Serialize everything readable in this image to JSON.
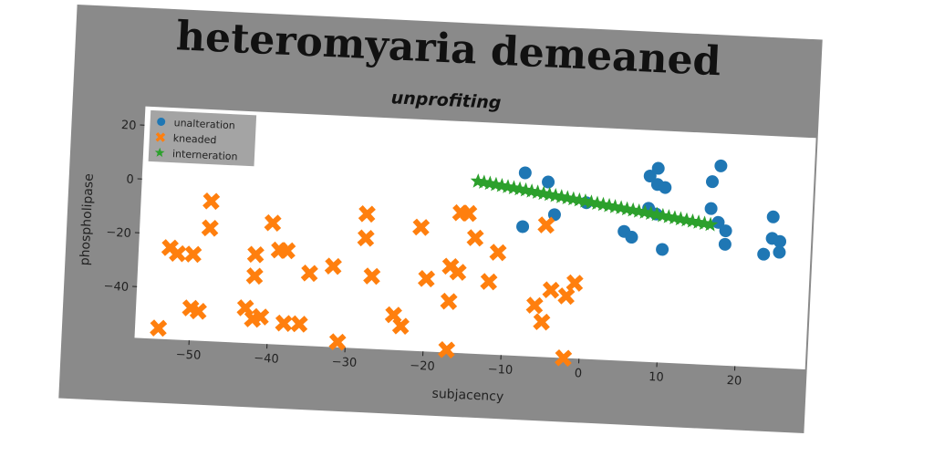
{
  "chart_data": {
    "type": "scatter",
    "title": "heteromyaria demeaned",
    "subtitle": "unprofiting",
    "xlabel": "subjacency",
    "ylabel": "phospholipase",
    "xlim": [
      -57,
      29
    ],
    "ylim": [
      -59,
      27
    ],
    "xticks": [
      -50,
      -40,
      -30,
      -20,
      -10,
      0,
      10,
      20
    ],
    "yticks": [
      -40,
      -20,
      0,
      20
    ],
    "xtick_labels": [
      "−50",
      "−40",
      "−30",
      "−20",
      "−10",
      "0",
      "10",
      "20"
    ],
    "ytick_labels": [
      "−40",
      "−20",
      "0",
      "20"
    ],
    "grid": false,
    "legend_position": "top-left",
    "series": [
      {
        "name": "unalteration",
        "marker": "circle",
        "color": "#1f77b4",
        "points": [
          [
            -8,
            9
          ],
          [
            -5,
            6
          ],
          [
            -8,
            -11
          ],
          [
            -4,
            -6
          ],
          [
            0,
            -1
          ],
          [
            5,
            -11
          ],
          [
            6,
            -13
          ],
          [
            8,
            10
          ],
          [
            9,
            13
          ],
          [
            9,
            7
          ],
          [
            10,
            6
          ],
          [
            8,
            -2
          ],
          [
            9,
            -4
          ],
          [
            10,
            -17
          ],
          [
            16,
            9
          ],
          [
            17,
            15
          ],
          [
            16,
            -1
          ],
          [
            17,
            -6
          ],
          [
            18,
            -9
          ],
          [
            18,
            -14
          ],
          [
            23,
            -17
          ],
          [
            24,
            -3
          ],
          [
            24,
            -11
          ],
          [
            25,
            -12
          ],
          [
            25,
            -16
          ]
        ]
      },
      {
        "name": "kneaded",
        "marker": "x",
        "color": "#ff7f0e",
        "points": [
          [
            -48,
            -7
          ],
          [
            -48,
            -17
          ],
          [
            -53,
            -25
          ],
          [
            -52,
            -27
          ],
          [
            -50,
            -27
          ],
          [
            -50,
            -47
          ],
          [
            -49,
            -48
          ],
          [
            -54,
            -55
          ],
          [
            -42,
            -26
          ],
          [
            -42,
            -34
          ],
          [
            -43,
            -46
          ],
          [
            -42,
            -50
          ],
          [
            -41,
            -49
          ],
          [
            -40,
            -14
          ],
          [
            -39,
            -24
          ],
          [
            -38,
            -24
          ],
          [
            -38,
            -51
          ],
          [
            -36,
            -51
          ],
          [
            -35,
            -32
          ],
          [
            -32,
            -29
          ],
          [
            -31,
            -57
          ],
          [
            -28,
            -9
          ],
          [
            -28,
            -18
          ],
          [
            -27,
            -32
          ],
          [
            -24,
            -46
          ],
          [
            -23,
            -50
          ],
          [
            -21,
            -13
          ],
          [
            -20,
            -32
          ],
          [
            -17,
            -27
          ],
          [
            -16,
            -29
          ],
          [
            -17,
            -40
          ],
          [
            -16,
            -7
          ],
          [
            -15,
            -7
          ],
          [
            -14,
            -16
          ],
          [
            -12,
            -32
          ],
          [
            -11,
            -21
          ],
          [
            -17,
            -58
          ],
          [
            -6,
            -40
          ],
          [
            -5,
            -46
          ],
          [
            -5,
            -10
          ],
          [
            -4,
            -34
          ],
          [
            -2,
            -36
          ],
          [
            -1,
            -31
          ],
          [
            -2,
            -59
          ]
        ]
      },
      {
        "name": "interneration",
        "marker": "star",
        "color": "#2ca02c",
        "line_from": [
          -14,
          5
        ],
        "line_to": [
          16,
          -7
        ],
        "count": 40
      }
    ]
  }
}
